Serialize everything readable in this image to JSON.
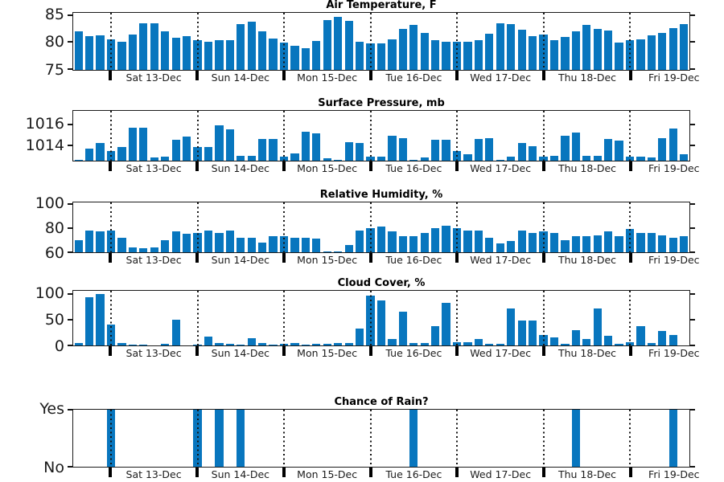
{
  "figure": {
    "kind": "weather-forecast-bar-subplots",
    "bar_color": "#0876be",
    "axis_color": "#1a1a1a",
    "grid_line_style": "dotted-vertical-day-dividers"
  },
  "x_axis": {
    "day_labels": [
      "Sat 13-Dec",
      "Sun 14-Dec",
      "Mon 15-Dec",
      "Tue 16-Dec",
      "Wed 17-Dec",
      "Thu 18-Dec",
      "Fri 19-Dec"
    ],
    "lead_in_slots": 4,
    "slots_per_day": 8,
    "total_slots": 57
  },
  "chart_data": [
    {
      "type": "bar",
      "title": "Air Temperature, F",
      "ylim": [
        74.8,
        85.4
      ],
      "yticks": [
        {
          "label": "85",
          "value": 85
        },
        {
          "label": "80",
          "value": 80
        },
        {
          "label": "75",
          "value": 75
        }
      ],
      "values": [
        82,
        81,
        81.2,
        80.5,
        80,
        81.3,
        83.4,
        83.5,
        82,
        80.7,
        81.1,
        80.3,
        80.1,
        80.4,
        80.4,
        83.3,
        83.8,
        82,
        80.6,
        79.9,
        79.3,
        78.9,
        80.2,
        84,
        84.6,
        83.9,
        80.1,
        79.7,
        79.7,
        80.5,
        82.4,
        83.1,
        81.6,
        80.3,
        80,
        80,
        80.1,
        80.4,
        81.5,
        83.4,
        83.3,
        82.3,
        81,
        81.4,
        80.4,
        80.9,
        81.9,
        83.1,
        82.4,
        82.1,
        79.9,
        80.4,
        80.5,
        81.2,
        81.7,
        82.6,
        83.3
      ]
    },
    {
      "type": "bar",
      "title": "Surface Pressure, mb",
      "ylim": [
        1012.5,
        1017.3
      ],
      "yticks": [
        {
          "label": "1016",
          "value": 1016
        },
        {
          "label": "1014",
          "value": 1014
        }
      ],
      "values": [
        1012.6,
        1013.7,
        1014.2,
        1013.4,
        1013.8,
        1015.7,
        1015.7,
        1012.8,
        1012.9,
        1014.5,
        1014.8,
        1013.8,
        1013.8,
        1015.9,
        1015.5,
        1013.0,
        1013.0,
        1014.6,
        1014.6,
        1012.9,
        1013.2,
        1015.3,
        1015.1,
        1012.7,
        1012.6,
        1014.3,
        1014.2,
        1012.9,
        1012.9,
        1014.9,
        1014.7,
        1012.6,
        1012.8,
        1014.5,
        1014.5,
        1013.4,
        1013.1,
        1014.6,
        1014.7,
        1012.6,
        1012.9,
        1014.2,
        1013.9,
        1012.9,
        1013.0,
        1014.9,
        1015.2,
        1013.0,
        1013.0,
        1014.6,
        1014.4,
        1012.9,
        1012.9,
        1012.8,
        1014.7,
        1015.6,
        1013.1
      ]
    },
    {
      "type": "bar",
      "title": "Relative Humidity, %",
      "ylim": [
        60,
        101
      ],
      "yticks": [
        {
          "label": "100",
          "value": 100
        },
        {
          "label": "80",
          "value": 80
        },
        {
          "label": "60",
          "value": 60
        }
      ],
      "values": [
        70,
        78,
        77,
        78,
        72,
        64,
        63,
        64,
        70,
        77,
        75,
        76,
        78,
        76,
        78,
        72,
        72,
        68,
        73,
        73,
        72,
        72,
        71,
        61,
        61,
        66,
        78,
        80,
        81,
        77,
        73,
        73,
        76,
        80,
        82,
        80,
        78,
        78,
        72,
        67,
        69,
        78,
        76,
        77,
        76,
        70,
        73,
        73,
        74,
        77,
        73,
        79,
        76,
        76,
        74,
        72,
        73
      ]
    },
    {
      "type": "bar",
      "title": "Cloud Cover, %",
      "ylim": [
        0,
        106
      ],
      "yticks": [
        {
          "label": "100",
          "value": 100
        },
        {
          "label": "50",
          "value": 50
        },
        {
          "label": "0",
          "value": 0
        }
      ],
      "values": [
        5,
        93,
        100,
        40,
        4,
        2,
        1,
        0,
        3,
        50,
        0,
        1,
        17,
        5,
        3,
        1,
        14,
        4,
        1,
        3,
        4,
        2,
        3,
        3,
        4,
        4,
        33,
        97,
        87,
        13,
        66,
        4,
        5,
        38,
        83,
        6,
        7,
        12,
        3,
        3,
        71,
        48,
        49,
        20,
        16,
        3,
        29,
        13,
        72,
        18,
        3,
        6,
        38,
        5,
        28,
        20,
        0
      ]
    },
    {
      "type": "bar",
      "title": "Chance of Rain?",
      "ylim": [
        0,
        1
      ],
      "yticks": [
        {
          "label": "Yes",
          "value": 1
        },
        {
          "label": "No",
          "value": 0
        }
      ],
      "values": [
        0,
        0,
        0,
        1,
        0,
        0,
        0,
        0,
        0,
        0,
        0,
        1,
        0,
        1,
        0,
        1,
        0,
        0,
        0,
        0,
        0,
        0,
        0,
        0,
        0,
        0,
        0,
        0,
        0,
        0,
        0,
        1,
        0,
        0,
        0,
        0,
        0,
        0,
        0,
        0,
        0,
        0,
        0,
        0,
        0,
        0,
        1,
        0,
        0,
        0,
        0,
        0,
        0,
        0,
        0,
        1,
        0
      ]
    }
  ]
}
